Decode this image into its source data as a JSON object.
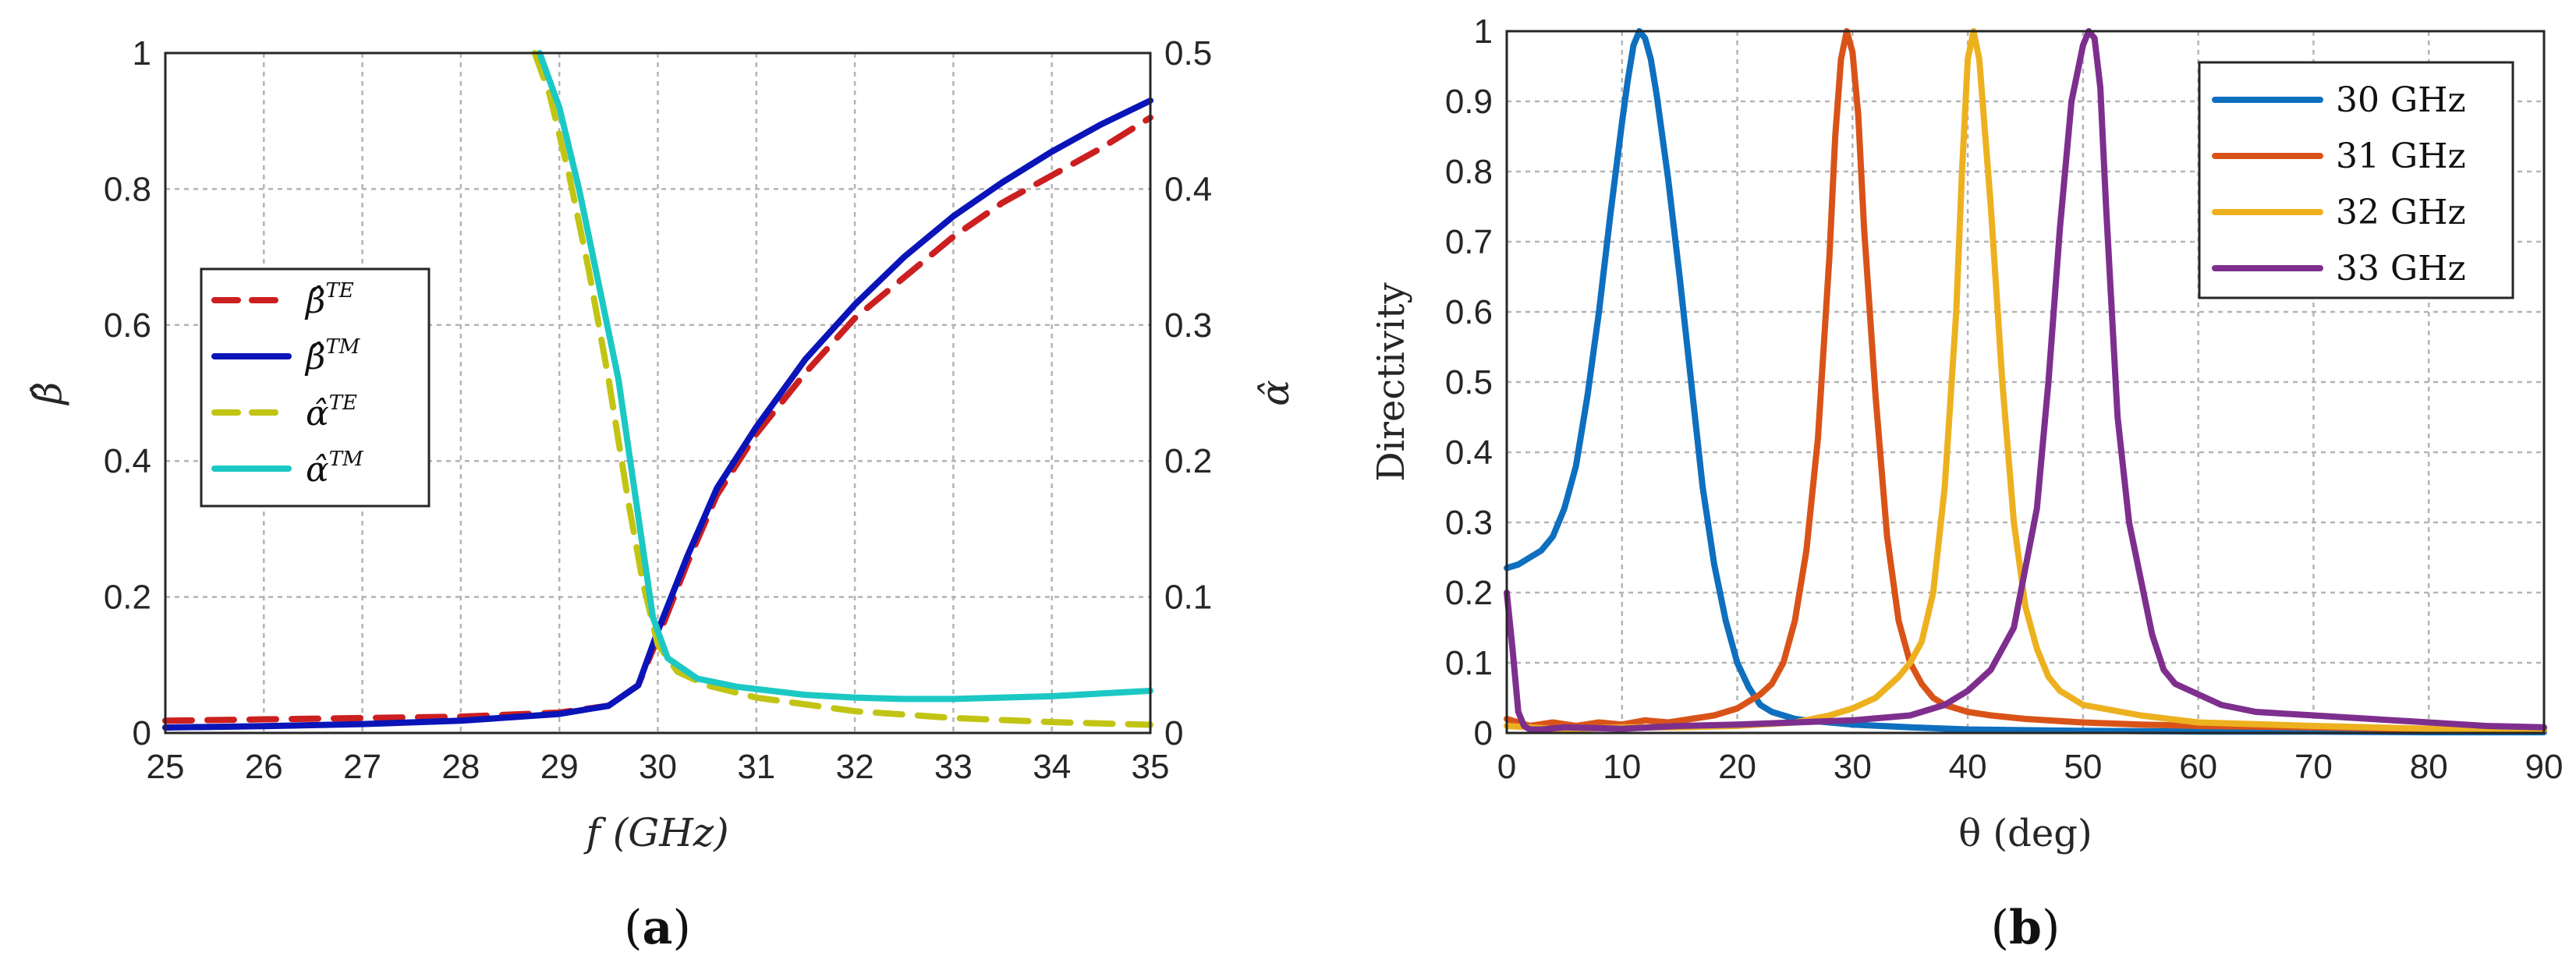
{
  "chart_data": [
    {
      "id": "a",
      "type": "line",
      "panel_label": "a",
      "xlabel": "f (GHz)",
      "ylabel_left": "β̂",
      "ylabel_right": "α̂",
      "xlim": [
        25,
        35
      ],
      "ylim_left": [
        0,
        1
      ],
      "ylim_right": [
        0,
        0.5
      ],
      "xticks": [
        25,
        26,
        27,
        28,
        29,
        30,
        31,
        32,
        33,
        34,
        35
      ],
      "yticks_left": [
        0,
        0.2,
        0.4,
        0.6,
        0.8,
        1
      ],
      "yticks_right": [
        0,
        0.1,
        0.2,
        0.3,
        0.4,
        0.5
      ],
      "grid": true,
      "legend_placement": "center-left",
      "series": [
        {
          "name": "β̂TE",
          "sym": "β̂",
          "sup": "TE",
          "color": "#cc1f1f",
          "style": "dashed",
          "axis": "left",
          "x": [
            25,
            26,
            27,
            28,
            29,
            29.5,
            29.8,
            30,
            30.3,
            30.6,
            31,
            31.5,
            32,
            32.5,
            33,
            33.5,
            34,
            34.5,
            35
          ],
          "y": [
            0.018,
            0.02,
            0.022,
            0.024,
            0.03,
            0.04,
            0.07,
            0.14,
            0.25,
            0.35,
            0.44,
            0.53,
            0.61,
            0.67,
            0.73,
            0.78,
            0.82,
            0.86,
            0.905
          ]
        },
        {
          "name": "β̂TM",
          "sym": "β̂",
          "sup": "TM",
          "color": "#0a14b8",
          "style": "solid",
          "axis": "left",
          "x": [
            25,
            26,
            27,
            28,
            29,
            29.5,
            29.8,
            30,
            30.3,
            30.6,
            31,
            31.5,
            32,
            32.5,
            33,
            33.5,
            34,
            34.5,
            35
          ],
          "y": [
            0.008,
            0.01,
            0.013,
            0.018,
            0.028,
            0.04,
            0.07,
            0.15,
            0.26,
            0.36,
            0.45,
            0.55,
            0.63,
            0.7,
            0.76,
            0.81,
            0.855,
            0.895,
            0.93
          ]
        },
        {
          "name": "α̂TE",
          "sym": "α̂",
          "sup": "TE",
          "color": "#c2c414",
          "style": "dashed",
          "axis": "right",
          "x": [
            28.75,
            28.9,
            29.1,
            29.3,
            29.5,
            29.7,
            29.85,
            30,
            30.2,
            30.5,
            31,
            32,
            33,
            34,
            35
          ],
          "y": [
            0.5,
            0.47,
            0.41,
            0.34,
            0.26,
            0.17,
            0.11,
            0.065,
            0.045,
            0.035,
            0.026,
            0.016,
            0.011,
            0.008,
            0.006
          ]
        },
        {
          "name": "α̂TM",
          "sym": "α̂",
          "sup": "TM",
          "color": "#1cc8c4",
          "style": "solid",
          "axis": "right",
          "x": [
            28.8,
            29,
            29.2,
            29.4,
            29.6,
            29.8,
            29.95,
            30.1,
            30.4,
            30.8,
            31.5,
            32,
            32.5,
            33,
            33.5,
            34,
            34.5,
            35
          ],
          "y": [
            0.5,
            0.46,
            0.4,
            0.33,
            0.26,
            0.16,
            0.085,
            0.055,
            0.04,
            0.034,
            0.028,
            0.026,
            0.025,
            0.025,
            0.026,
            0.027,
            0.029,
            0.031
          ]
        }
      ]
    },
    {
      "id": "b",
      "type": "line",
      "panel_label": "b",
      "xlabel": "θ (deg)",
      "ylabel": "Directivity",
      "xlim": [
        0,
        90
      ],
      "ylim": [
        0,
        1
      ],
      "xticks": [
        0,
        10,
        20,
        30,
        40,
        50,
        60,
        70,
        80,
        90
      ],
      "yticks": [
        0,
        0.1,
        0.2,
        0.3,
        0.4,
        0.5,
        0.6,
        0.7,
        0.8,
        0.9,
        1
      ],
      "grid": true,
      "legend_placement": "top-right",
      "series": [
        {
          "name": "30 GHz",
          "color": "#0e6fbf",
          "x": [
            0,
            1,
            2,
            3,
            4,
            5,
            6,
            7,
            8,
            9,
            10,
            10.5,
            11,
            11.5,
            12,
            12.5,
            13,
            14,
            15,
            16,
            17,
            18,
            19,
            20,
            21,
            22,
            23,
            24,
            25,
            26,
            28,
            30,
            35,
            40,
            50,
            60,
            70,
            80,
            90
          ],
          "y": [
            0.235,
            0.24,
            0.25,
            0.26,
            0.28,
            0.32,
            0.38,
            0.48,
            0.6,
            0.74,
            0.87,
            0.93,
            0.98,
            1.0,
            0.99,
            0.96,
            0.91,
            0.79,
            0.65,
            0.5,
            0.35,
            0.24,
            0.16,
            0.1,
            0.065,
            0.04,
            0.03,
            0.025,
            0.02,
            0.018,
            0.015,
            0.012,
            0.008,
            0.005,
            0.003,
            0.002,
            0.002,
            0.001,
            0.001
          ]
        },
        {
          "name": "31 GHz",
          "color": "#d95319",
          "x": [
            0,
            2,
            4,
            6,
            8,
            10,
            12,
            14,
            16,
            18,
            20,
            21,
            22,
            23,
            24,
            25,
            26,
            27,
            28,
            28.5,
            29,
            29.5,
            30,
            30.5,
            31,
            32,
            33,
            34,
            35,
            36,
            37,
            38,
            40,
            42,
            45,
            50,
            55,
            60,
            70,
            80,
            90
          ],
          "y": [
            0.02,
            0.01,
            0.015,
            0.01,
            0.015,
            0.012,
            0.018,
            0.015,
            0.02,
            0.025,
            0.035,
            0.045,
            0.055,
            0.07,
            0.1,
            0.16,
            0.26,
            0.42,
            0.68,
            0.85,
            0.96,
            1.0,
            0.97,
            0.88,
            0.72,
            0.48,
            0.28,
            0.16,
            0.1,
            0.07,
            0.05,
            0.04,
            0.03,
            0.025,
            0.02,
            0.015,
            0.012,
            0.01,
            0.008,
            0.005,
            0.004
          ]
        },
        {
          "name": "32 GHz",
          "color": "#edb120",
          "x": [
            0,
            5,
            10,
            15,
            20,
            25,
            28,
            30,
            32,
            34,
            35,
            36,
            37,
            38,
            39,
            39.5,
            40,
            40.5,
            41,
            42,
            43,
            44,
            45,
            46,
            47,
            48,
            50,
            55,
            60,
            70,
            80,
            90
          ],
          "y": [
            0.01,
            0.005,
            0.008,
            0.008,
            0.01,
            0.015,
            0.025,
            0.035,
            0.05,
            0.08,
            0.1,
            0.13,
            0.2,
            0.35,
            0.6,
            0.8,
            0.96,
            1.0,
            0.96,
            0.75,
            0.5,
            0.3,
            0.18,
            0.12,
            0.08,
            0.06,
            0.04,
            0.025,
            0.015,
            0.01,
            0.006,
            0.004
          ]
        },
        {
          "name": "33 GHz",
          "color": "#7e2f8e",
          "x": [
            0,
            0.5,
            1,
            1.5,
            2,
            3,
            5,
            10,
            15,
            20,
            25,
            30,
            35,
            38,
            40,
            42,
            44,
            46,
            47,
            48,
            49,
            50,
            50.5,
            51,
            51.5,
            52,
            53,
            54,
            55,
            56,
            57,
            58,
            60,
            62,
            65,
            70,
            75,
            80,
            85,
            90
          ],
          "y": [
            0.2,
            0.12,
            0.03,
            0.01,
            0.005,
            0.005,
            0.008,
            0.006,
            0.01,
            0.012,
            0.015,
            0.018,
            0.025,
            0.04,
            0.06,
            0.09,
            0.15,
            0.32,
            0.5,
            0.72,
            0.9,
            0.98,
            1.0,
            0.99,
            0.92,
            0.75,
            0.45,
            0.3,
            0.22,
            0.14,
            0.09,
            0.07,
            0.055,
            0.04,
            0.03,
            0.025,
            0.02,
            0.015,
            0.01,
            0.008
          ]
        }
      ]
    }
  ]
}
